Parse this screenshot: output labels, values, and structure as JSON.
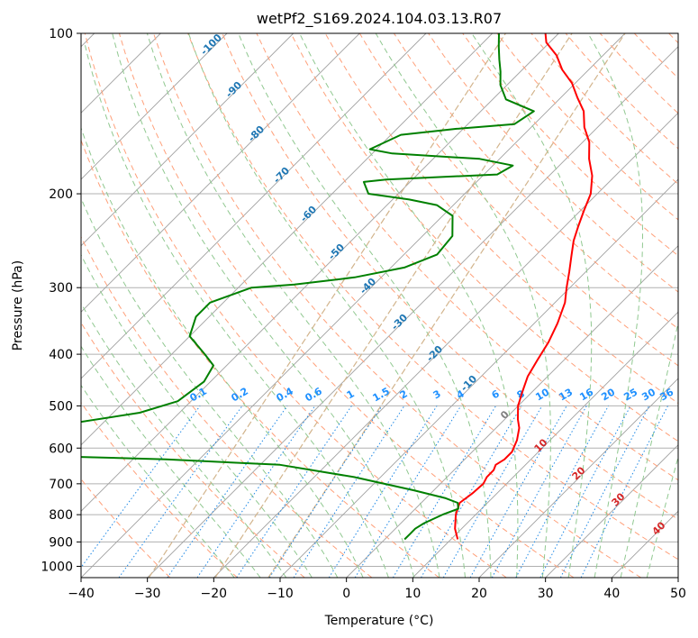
{
  "chart_data": {
    "type": "line",
    "title": "wetPf2_S169.2024.104.03.13.R07",
    "xlabel": "Temperature (°C)",
    "ylabel": "Pressure (hPa)",
    "xlim": [
      -40,
      50
    ],
    "ylim": [
      1050,
      100
    ],
    "y_scale": "log",
    "grid": true,
    "x_ticks": [
      -40,
      -30,
      -20,
      -10,
      0,
      10,
      20,
      30,
      40,
      50
    ],
    "y_ticks": [
      100,
      200,
      300,
      400,
      500,
      600,
      700,
      800,
      900,
      1000
    ],
    "series": [
      {
        "color": "#ff0000",
        "style": "temperature profile",
        "points": [
          [
            11.0,
            890
          ],
          [
            9.0,
            850
          ],
          [
            7.0,
            800
          ],
          [
            5.8,
            760
          ],
          [
            6.3,
            730
          ],
          [
            6.5,
            700
          ],
          [
            6.0,
            680
          ],
          [
            6.0,
            660
          ],
          [
            5.5,
            645
          ],
          [
            6.0,
            630
          ],
          [
            6.0,
            610
          ],
          [
            5.0,
            580
          ],
          [
            3.5,
            550
          ],
          [
            2.0,
            530
          ],
          [
            0.0,
            500
          ],
          [
            -1.5,
            470
          ],
          [
            -3.0,
            440
          ],
          [
            -4.0,
            410
          ],
          [
            -5.0,
            380
          ],
          [
            -6.5,
            350
          ],
          [
            -8.5,
            320
          ],
          [
            -10.5,
            300
          ],
          [
            -12.5,
            280
          ],
          [
            -14.5,
            262
          ],
          [
            -16.5,
            245
          ],
          [
            -18.0,
            230
          ],
          [
            -19.5,
            215
          ],
          [
            -21.0,
            200
          ],
          [
            -23.5,
            185
          ],
          [
            -26.5,
            172
          ],
          [
            -29.0,
            160
          ],
          [
            -32.0,
            150
          ],
          [
            -34.5,
            140
          ],
          [
            -37.5,
            132
          ],
          [
            -40.5,
            124
          ],
          [
            -44.0,
            117
          ],
          [
            -47.0,
            110
          ],
          [
            -50.5,
            104
          ],
          [
            -52.0,
            100
          ]
        ]
      },
      {
        "color": "#008000",
        "style": "dewpoint profile",
        "points": [
          [
            3.0,
            890
          ],
          [
            3.0,
            870
          ],
          [
            3.0,
            850
          ],
          [
            3.5,
            830
          ],
          [
            5.0,
            800
          ],
          [
            6.5,
            780
          ],
          [
            5.5,
            760
          ],
          [
            3.0,
            745
          ],
          [
            -3.0,
            720
          ],
          [
            -14.0,
            680
          ],
          [
            -27.0,
            645
          ],
          [
            -45.0,
            630
          ],
          [
            -65.0,
            620
          ],
          [
            -70.0,
            600
          ],
          [
            -72.0,
            560
          ],
          [
            -65.0,
            540
          ],
          [
            -56.0,
            515
          ],
          [
            -52.0,
            490
          ],
          [
            -51.0,
            450
          ],
          [
            -52.0,
            420
          ],
          [
            -55.0,
            400
          ],
          [
            -60.0,
            370
          ],
          [
            -62.0,
            340
          ],
          [
            -62.0,
            320
          ],
          [
            -58.0,
            300
          ],
          [
            -52.0,
            296
          ],
          [
            -44.0,
            287
          ],
          [
            -38.0,
            275
          ],
          [
            -35.0,
            260
          ],
          [
            -35.5,
            240
          ],
          [
            -38.5,
            220
          ],
          [
            -42.5,
            210
          ],
          [
            -47.5,
            205
          ],
          [
            -54.5,
            200
          ],
          [
            -57.0,
            190
          ],
          [
            -54.0,
            188
          ],
          [
            -38.0,
            184
          ],
          [
            -37.0,
            177
          ],
          [
            -43.0,
            172
          ],
          [
            -57.0,
            168
          ],
          [
            -61.0,
            165
          ],
          [
            -58.5,
            155
          ],
          [
            -51.0,
            151
          ],
          [
            -43.0,
            148
          ],
          [
            -42.0,
            140
          ],
          [
            -48.0,
            133
          ],
          [
            -51.0,
            125
          ],
          [
            -53.0,
            118
          ],
          [
            -55.0,
            112
          ],
          [
            -57.0,
            106
          ],
          [
            -59.0,
            100
          ]
        ]
      }
    ],
    "isotherm_labels": [
      "-100",
      "-90",
      "-80",
      "-70",
      "-60",
      "-50",
      "-40",
      "-30",
      "-20",
      "-10"
    ],
    "mixing_ratio_labels": [
      "0.1",
      "0.2",
      "0.4",
      "0.6",
      "1",
      "1.5",
      "2",
      "3",
      "4",
      "6",
      "8",
      "10",
      "13",
      "16",
      "20",
      "25",
      "30",
      "36"
    ],
    "moist_adiabat_labels": [
      "0",
      "10",
      "20",
      "30",
      "40"
    ],
    "colors": {
      "grid": "#b0b0b0",
      "isotherm": "#a0a0a0",
      "dry_adiabat": "#ffa07a",
      "moist_adiabat": "#90c890",
      "mixing_ratio": "#1e88e5",
      "isotherm_label": "#1f77b4",
      "mixing_ratio_label": "#1e90ff",
      "moist_label_red": "#d62728",
      "moist_label_gray": "#808080",
      "tan_curve": "#d2b48c"
    }
  }
}
